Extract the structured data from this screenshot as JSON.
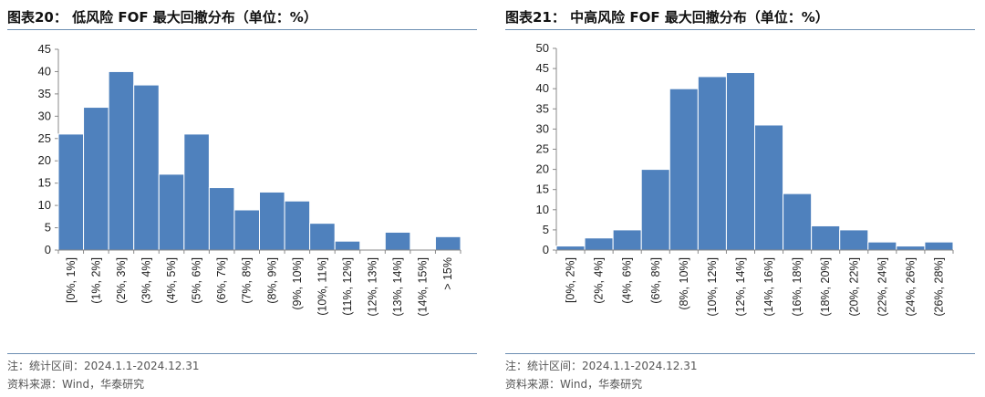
{
  "charts": [
    {
      "title": "图表20：  低风险 FOF 最大回撤分布（单位：%）",
      "note": "注：统计区间：2024.1.1-2024.12.31",
      "source": "资料来源：Wind，华泰研究",
      "chart_data": {
        "type": "bar",
        "categories": [
          "[0%, 1%]",
          "(1%, 2%]",
          "(2%, 3%]",
          "(3%, 4%]",
          "(4%, 5%]",
          "(5%, 6%]",
          "(6%, 7%]",
          "(7%, 8%]",
          "(8%, 9%]",
          "(9%, 10%]",
          "(10%, 11%]",
          "(11%, 12%]",
          "(12%, 13%]",
          "(13%, 14%]",
          "(14%, 15%]",
          "> 15%"
        ],
        "values": [
          26,
          32,
          40,
          37,
          17,
          26,
          14,
          9,
          13,
          11,
          6,
          2,
          0,
          4,
          0,
          3
        ],
        "ylim": [
          0,
          45
        ],
        "yticks": [
          0,
          5,
          10,
          15,
          20,
          25,
          30,
          35,
          40,
          45
        ],
        "bar_color": "#4f81bd",
        "grid": false,
        "legend": "none"
      }
    },
    {
      "title": "图表21：  中高风险 FOF 最大回撤分布（单位：%）",
      "note": "注：统计区间：2024.1.1-2024.12.31",
      "source": "资料来源：Wind，华泰研究",
      "chart_data": {
        "type": "bar",
        "categories": [
          "[0%, 2%]",
          "(2%, 4%]",
          "(4%, 6%]",
          "(6%, 8%]",
          "(8%, 10%]",
          "(10%, 12%]",
          "(12%, 14%]",
          "(14%, 16%]",
          "(16%, 18%]",
          "(18%, 20%]",
          "(20%, 22%]",
          "(22%, 24%]",
          "(24%, 26%]",
          "(26%, 28%]"
        ],
        "values": [
          1,
          3,
          5,
          20,
          40,
          43,
          44,
          31,
          14,
          6,
          5,
          2,
          1,
          2
        ],
        "ylim": [
          0,
          50
        ],
        "yticks": [
          0,
          5,
          10,
          15,
          20,
          25,
          30,
          35,
          40,
          45,
          50
        ],
        "bar_color": "#4f81bd",
        "grid": false,
        "legend": "none"
      }
    }
  ]
}
